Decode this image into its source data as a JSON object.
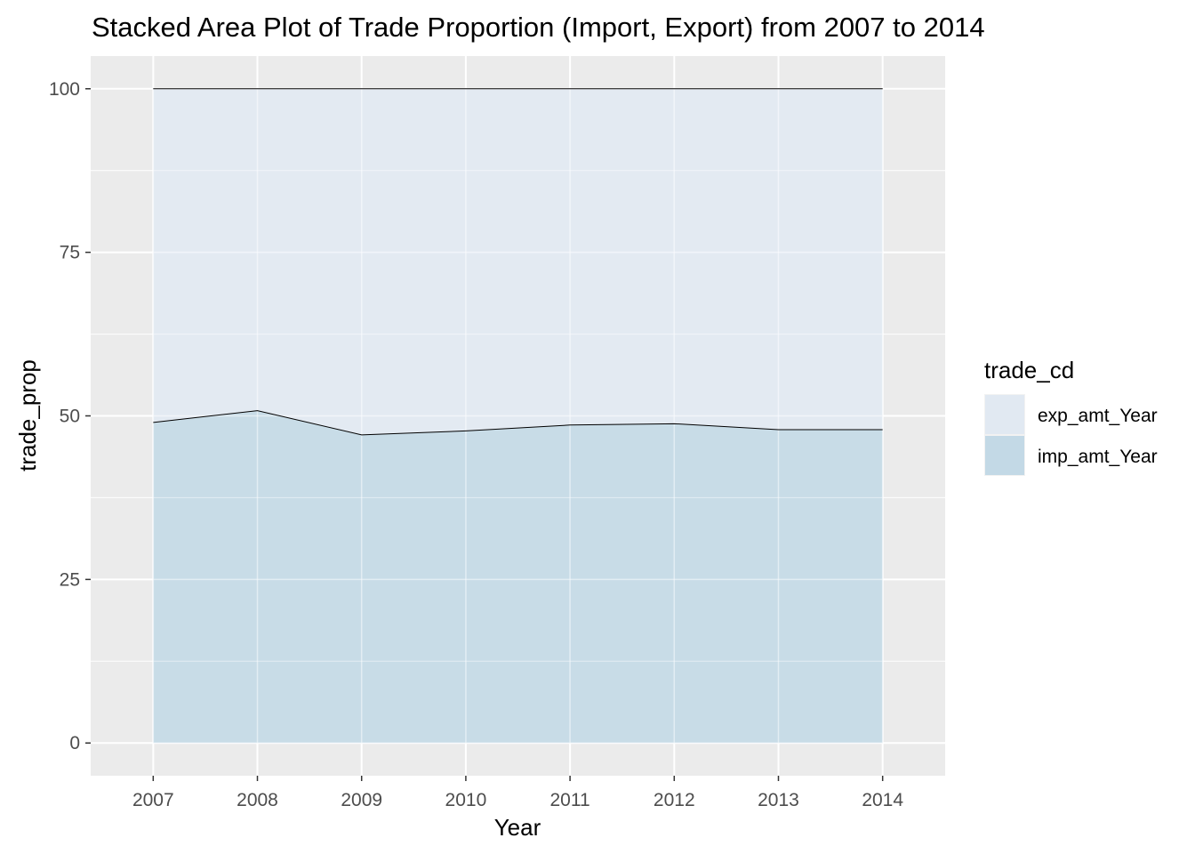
{
  "chart_data": {
    "type": "area",
    "stacked": true,
    "title": "Stacked Area Plot of Trade Proportion (Import, Export) from 2007 to 2014",
    "xlabel": "Year",
    "ylabel": "trade_prop",
    "x": [
      2007,
      2008,
      2009,
      2010,
      2011,
      2012,
      2013,
      2014
    ],
    "xticks": [
      "2007",
      "2008",
      "2009",
      "2010",
      "2011",
      "2012",
      "2013",
      "2014"
    ],
    "yticks": [
      "0",
      "25",
      "50",
      "75",
      "100"
    ],
    "ylim": [
      -5,
      105
    ],
    "xlim": [
      2006.4,
      2014.6
    ],
    "grid": true,
    "legend": {
      "title": "trade_cd",
      "placement": "right"
    },
    "series": [
      {
        "name": "exp_amt_Year",
        "values": [
          51.0,
          49.2,
          52.9,
          52.3,
          51.4,
          51.2,
          52.1,
          52.1
        ],
        "color": "#e1e9f2"
      },
      {
        "name": "imp_amt_Year",
        "values": [
          49.0,
          50.8,
          47.1,
          47.7,
          48.6,
          48.8,
          47.9,
          47.9
        ],
        "color": "#c3d9e6"
      }
    ],
    "colors": {
      "panel_background": "#ebebeb",
      "grid_major": "#ffffff",
      "outline": "#000000"
    }
  }
}
